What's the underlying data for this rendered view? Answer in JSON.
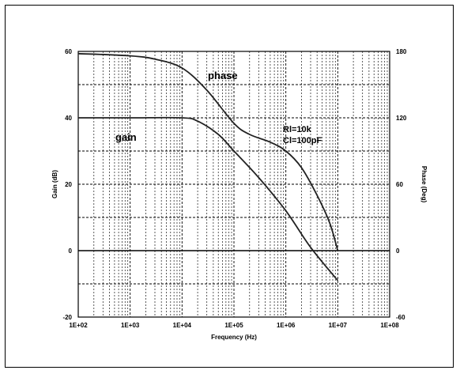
{
  "chart_data": {
    "type": "line",
    "xlabel": "Frequency (Hz)",
    "ylabel_left": "Gain (dB)",
    "ylabel_right": "Phase (Deg)",
    "x_scale": "log",
    "xlim": [
      100,
      100000000
    ],
    "ylim_left": [
      -20,
      60
    ],
    "ylim_right": [
      -60,
      180
    ],
    "grid": true,
    "x_ticks": [
      "1E+02",
      "1E+03",
      "1E+04",
      "1E+05",
      "1E+06",
      "1E+07",
      "1E+08"
    ],
    "y_ticks_left": [
      "60",
      "40",
      "20",
      "0",
      "-20"
    ],
    "y_ticks_right": [
      "180",
      "120",
      "60",
      "0",
      "-60"
    ],
    "annotations": [
      "phase",
      "gain",
      "Rl=10k",
      "Cl=100pF"
    ],
    "series": [
      {
        "name": "gain",
        "axis": "left",
        "x": [
          100,
          1000,
          10000,
          20000,
          50000,
          100000,
          300000,
          1000000,
          3000000,
          10000000
        ],
        "y": [
          40,
          40,
          40,
          39,
          35,
          30,
          22,
          12,
          1,
          -9
        ]
      },
      {
        "name": "phase",
        "axis": "right",
        "x": [
          100,
          1000,
          3000,
          10000,
          30000,
          100000,
          200000,
          500000,
          1000000,
          2000000,
          4000000,
          7000000,
          10000000
        ],
        "y": [
          178,
          176,
          173,
          165,
          145,
          115,
          105,
          98,
          90,
          75,
          50,
          25,
          0
        ]
      }
    ]
  }
}
